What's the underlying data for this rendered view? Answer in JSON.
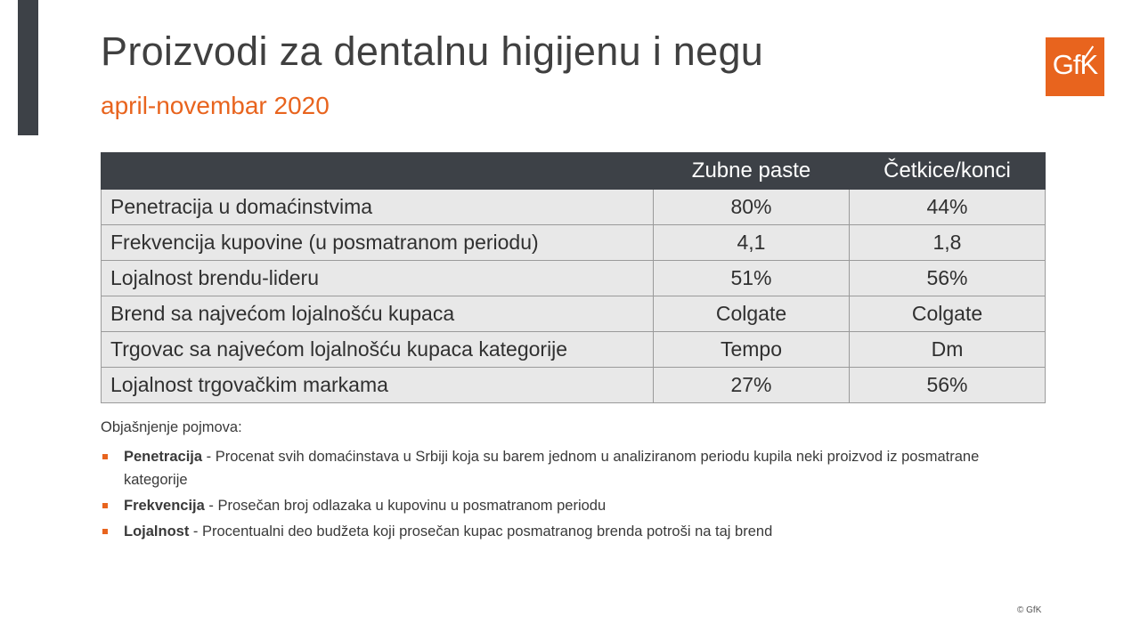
{
  "header": {
    "title": "Proizvodi za dentalnu higijenu i negu",
    "subtitle": "april-novembar 2020",
    "logo_text": "GfK"
  },
  "table": {
    "columns": [
      "",
      "Zubne paste",
      "Četkice/konci"
    ],
    "rows": [
      {
        "label": "Penetracija u domaćinstvima",
        "values": [
          "80%",
          "44%"
        ]
      },
      {
        "label": "Frekvencija kupovine (u posmatranom periodu)",
        "values": [
          "4,1",
          "1,8"
        ]
      },
      {
        "label": "Lojalnost brendu-lideru",
        "values": [
          "51%",
          "56%"
        ]
      },
      {
        "label": "Brend sa najvećom lojalnošću kupaca",
        "values": [
          "Colgate",
          "Colgate"
        ]
      },
      {
        "label": "Trgovac sa najvećom lojalnošću kupaca kategorije",
        "values": [
          "Tempo",
          "Dm"
        ]
      },
      {
        "label": "Lojalnost trgovačkim markama",
        "values": [
          "27%",
          "56%"
        ]
      }
    ]
  },
  "legend": {
    "title": "Objašnjenje pojmova:",
    "items": [
      {
        "term": "Penetracija",
        "definition": " - Procenat svih domaćinstava u Srbiji koja su barem jednom u analiziranom periodu kupila neki proizvod iz posmatrane kategorije"
      },
      {
        "term": "Frekvencija",
        "definition": " - Prosečan broj odlazaka u kupovinu u posmatranom periodu"
      },
      {
        "term": "Lojalnost",
        "definition": " - Procentualni deo budžeta koji prosečan kupac posmatranog brenda potroši na taj brend"
      }
    ]
  },
  "footer": {
    "copyright": "© GfK"
  },
  "colors": {
    "accent": "#e8641e",
    "header_bg": "#3d4147",
    "row_bg": "#e8e8e8"
  }
}
